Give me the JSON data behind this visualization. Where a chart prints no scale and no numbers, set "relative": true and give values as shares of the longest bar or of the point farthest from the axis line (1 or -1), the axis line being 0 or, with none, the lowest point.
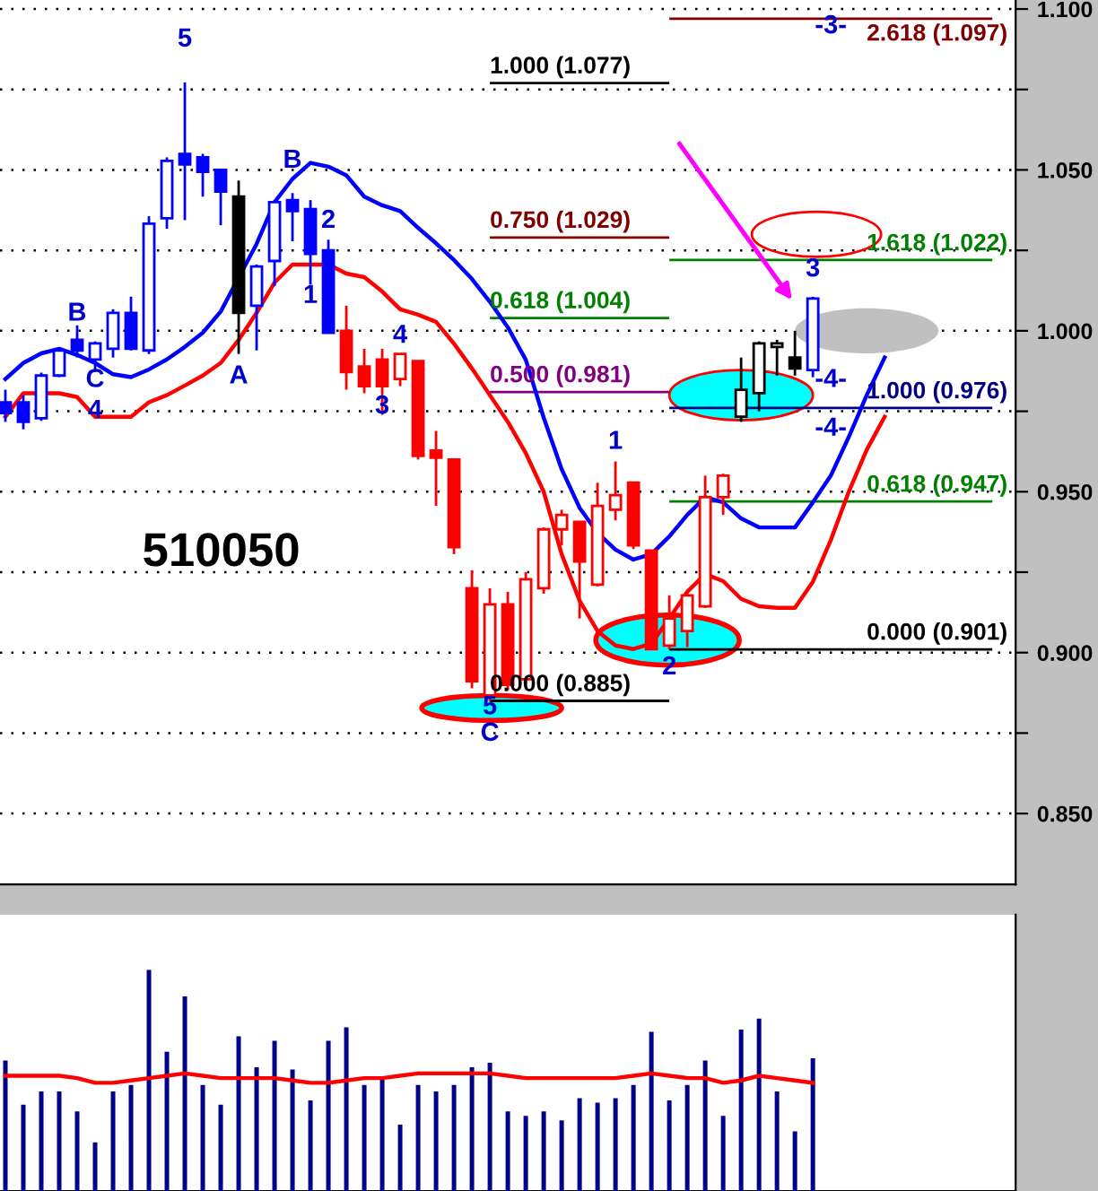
{
  "chart_data": [
    {
      "type": "candlestick",
      "title": "510050",
      "categories": [
        null,
        null,
        null,
        null,
        null,
        null,
        null,
        null,
        null,
        null,
        null,
        null,
        null,
        null,
        null,
        null,
        null,
        null,
        null,
        null,
        null,
        null,
        null,
        null,
        null,
        null,
        null,
        null,
        null,
        null,
        null,
        null,
        null,
        null,
        null,
        null,
        null,
        null,
        null,
        null,
        null,
        null,
        null,
        null,
        null,
        null,
        null,
        null,
        null,
        null
      ],
      "ohlc": [
        [
          0.9778,
          0.9817,
          0.9717,
          0.9744
        ],
        [
          0.9778,
          0.98,
          0.9694,
          0.9717
        ],
        [
          0.9728,
          0.987,
          0.972,
          0.9861
        ],
        [
          0.9861,
          0.9944,
          0.9856,
          0.9939
        ],
        [
          0.9972,
          1.0017,
          0.9917,
          0.9939
        ],
        [
          0.9911,
          0.9967,
          0.9872,
          0.9961
        ],
        [
          0.9944,
          1.0067,
          0.9917,
          1.0056
        ],
        [
          1.0056,
          1.0106,
          0.9939,
          0.9944
        ],
        [
          0.9939,
          1.0356,
          0.9928,
          1.0333
        ],
        [
          1.035,
          1.0539,
          1.0317,
          1.0528
        ],
        [
          1.055,
          1.0772,
          1.0344,
          1.0517
        ],
        [
          1.0539,
          1.055,
          1.0417,
          1.0494
        ],
        [
          1.05,
          1.05,
          1.0328,
          1.0433
        ],
        [
          1.0417,
          1.0467,
          0.9928,
          1.0056
        ],
        [
          1.0078,
          1.0206,
          0.9939,
          1.02
        ],
        [
          1.0217,
          1.0406,
          1.0139,
          1.04
        ],
        [
          1.0406,
          1.0428,
          1.0278,
          1.0372
        ],
        [
          1.0378,
          1.0406,
          1.0144,
          1.0239
        ],
        [
          1.025,
          1.0283,
          0.9994,
          0.9994
        ],
        [
          1.0,
          1.0078,
          0.9817,
          0.9872
        ],
        [
          0.9889,
          0.9944,
          0.9806,
          0.9828
        ],
        [
          0.9911,
          0.9944,
          0.9739,
          0.9828
        ],
        [
          0.985,
          0.9928,
          0.9828,
          0.9928
        ],
        [
          0.9906,
          0.9906,
          0.96,
          0.9611
        ],
        [
          0.9628,
          0.9689,
          0.9456,
          0.9606
        ],
        [
          0.96,
          0.96,
          0.9306,
          0.9328
        ],
        [
          0.92,
          0.9256,
          0.8889,
          0.8911
        ],
        [
          0.8867,
          0.92,
          0.885,
          0.915
        ],
        [
          0.915,
          0.9189,
          0.8883,
          0.89
        ],
        [
          0.8917,
          0.925,
          0.89,
          0.9228
        ],
        [
          0.92,
          0.9389,
          0.9183,
          0.9383
        ],
        [
          0.9383,
          0.9444,
          0.9333,
          0.9428
        ],
        [
          0.9406,
          0.9406,
          0.9106,
          0.9283
        ],
        [
          0.9211,
          0.9528,
          0.9206,
          0.9456
        ],
        [
          0.9444,
          0.9594,
          0.9411,
          0.9489
        ],
        [
          0.9528,
          0.9528,
          0.9322,
          0.9333
        ],
        [
          0.9317,
          0.9317,
          0.9011,
          0.9011
        ],
        [
          0.9022,
          0.9178,
          0.9011,
          0.9106
        ],
        [
          0.9067,
          0.9189,
          0.9017,
          0.9178
        ],
        [
          0.9144,
          0.955,
          0.9139,
          0.9483
        ],
        [
          0.9483,
          0.9556,
          0.9428,
          0.955
        ],
        [
          0.9733,
          0.9917,
          0.9717,
          0.9817
        ],
        [
          0.9806,
          0.9967,
          0.975,
          0.9961
        ],
        [
          0.995,
          0.9972,
          0.9861,
          0.9961
        ],
        [
          0.9917,
          1.0,
          0.9861,
          0.9883
        ],
        [
          0.9878,
          1.0106,
          0.9856,
          1.01
        ],
        null,
        null,
        null,
        null
      ],
      "colors": [
        "#0000ff",
        "#0000ff",
        "#0000ff",
        "#0000ff",
        "#0000ff",
        "#0000ff",
        "#0000ff",
        "#0000ff",
        "#0000ff",
        "#0000ff",
        "#0000ff",
        "#0000ff",
        "#0000ff",
        "#000000",
        "#0000ff",
        "#0000ff",
        "#0000ff",
        "#0000ff",
        "#0000ff",
        "#ff0000",
        "#ff0000",
        "#ff0000",
        "#ff0000",
        "#ff0000",
        "#ff0000",
        "#ff0000",
        "#ff0000",
        "#ff0000",
        "#ff0000",
        "#ff0000",
        "#ff0000",
        "#ff0000",
        "#ff0000",
        "#ff0000",
        "#ff0000",
        "#ff0000",
        "#ff0000",
        "#ff0000",
        "#ff0000",
        "#ff0000",
        "#ff0000",
        "#000000",
        "#000000",
        "#000000",
        "#000000",
        "#0000ff",
        null,
        null,
        null,
        null
      ],
      "series": [
        {
          "type": "line",
          "color": "#0000ff",
          "values": [
            0.985,
            0.99,
            0.993,
            0.9944,
            0.9925,
            0.99,
            0.9865,
            0.9856,
            0.988,
            0.9911,
            0.995,
            0.9994,
            1.006,
            null,
            1.027,
            1.04,
            1.0472,
            1.0522,
            1.051,
            1.0483,
            1.0417,
            1.039,
            1.0372,
            1.032,
            1.0272,
            1.022,
            1.0161,
            1.009,
            1.0011,
            0.991,
            0.973,
            0.957,
            0.945,
            0.9372,
            0.932,
            0.9289,
            0.9306,
            0.9361,
            0.9428,
            0.9483,
            0.9467,
            0.9417,
            0.9389,
            0.9389,
            0.9389,
            0.9467,
            0.955,
            0.967,
            0.98,
            0.9917
          ]
        },
        {
          "type": "line",
          "color": "#ff0000",
          "values": [
            0.9733,
            0.9806,
            0.9806,
            0.9806,
            0.9794,
            0.9733,
            0.9733,
            0.9733,
            0.9778,
            0.98,
            0.983,
            0.9861,
            0.99,
            0.9972,
            1.0056,
            1.015,
            1.0206,
            1.0206,
            1.0206,
            1.0178,
            1.0167,
            1.0122,
            1.0067,
            1.005,
            1.0028,
            0.996,
            0.9883,
            0.98,
            0.9717,
            0.962,
            0.95,
            0.9306,
            0.9161,
            0.9067,
            0.9022,
            0.9011,
            0.9028,
            0.9106,
            0.9189,
            0.9244,
            0.9222,
            0.9167,
            0.9144,
            0.9139,
            0.9139,
            0.922,
            0.935,
            0.95,
            0.963,
            0.9733
          ]
        }
      ],
      "ylim": [
        0.828,
        1.1028
      ],
      "yticks": [
        {
          "value": 0.85,
          "label": "0.850"
        },
        {
          "value": 0.875,
          "label": null
        },
        {
          "value": 0.9,
          "label": "0.900"
        },
        {
          "value": 0.925,
          "label": null
        },
        {
          "value": 0.95,
          "label": "0.950"
        },
        {
          "value": 0.975,
          "label": null
        },
        {
          "value": 1.0,
          "label": "1.000"
        },
        {
          "value": 1.025,
          "label": null
        },
        {
          "value": 1.05,
          "label": "1.050"
        },
        {
          "value": 1.075,
          "label": null
        },
        {
          "value": 1.1,
          "label": "1.100"
        }
      ],
      "grid": "y",
      "tick_labels": "y",
      "ref_lines": [
        {
          "axis": "y",
          "value": 1.077,
          "label": "1.000 (1.077)",
          "color": "#000000"
        },
        {
          "axis": "y",
          "value": 1.029,
          "label": "0.750 (1.029)",
          "color": "#800000"
        },
        {
          "axis": "y",
          "value": 1.004,
          "label": "0.618 (1.004)",
          "color": "#008000"
        },
        {
          "axis": "y",
          "value": 0.981,
          "label": "0.500 (0.981)",
          "color": "#800080"
        },
        {
          "axis": "y",
          "value": 0.885,
          "label": "0.000 (0.885)",
          "color": "#000000"
        },
        {
          "axis": "y",
          "value": 1.097,
          "label": "2.618 (1.097)",
          "color": "#800000"
        },
        {
          "axis": "y",
          "value": 1.022,
          "label": "1.618 (1.022)",
          "color": "#008000"
        },
        {
          "axis": "y",
          "value": 0.976,
          "label": "1.000 (0.976)",
          "color": "#000080"
        },
        {
          "axis": "y",
          "value": 0.947,
          "label": "0.618 (0.947)",
          "color": "#008000"
        },
        {
          "axis": "y",
          "value": 0.901,
          "label": "0.000 (0.901)",
          "color": "#000000"
        }
      ],
      "annotations": [
        "5",
        "B",
        "A",
        "B",
        "C",
        "4",
        "2",
        "1",
        "4",
        "3",
        "5",
        "C",
        "1",
        "2",
        "3",
        "-3-",
        "-4-",
        "-4-"
      ]
    },
    {
      "type": "bar",
      "relative": true,
      "categories": [
        null,
        null,
        null,
        null,
        null,
        null,
        null,
        null,
        null,
        null,
        null,
        null,
        null,
        null,
        null,
        null,
        null,
        null,
        null,
        null,
        null,
        null,
        null,
        null,
        null,
        null,
        null,
        null,
        null,
        null,
        null,
        null,
        null,
        null,
        null,
        null,
        null,
        null,
        null,
        null,
        null,
        null,
        null,
        null,
        null,
        null
      ],
      "series": [
        {
          "type": "bar",
          "color": "#00008b",
          "values": [
            0.59,
            0.39,
            0.45,
            0.45,
            0.36,
            0.22,
            0.45,
            0.48,
            1,
            0.63,
            0.88,
            0.48,
            0.39,
            0.7,
            0.56,
            0.68,
            0.55,
            0.41,
            0.68,
            0.74,
            0.48,
            0.51,
            0.3,
            0.48,
            0.45,
            0.48,
            0.56,
            0.58,
            0.36,
            0.34,
            0.36,
            0.32,
            0.42,
            0.4,
            0.42,
            0.48,
            0.72,
            0.41,
            0.48,
            0.59,
            0.34,
            0.73,
            0.78,
            0.45,
            0.27,
            0.6
          ]
        }
      ],
      "tick_labels": false
    },
    {
      "type": "line",
      "relative": true,
      "categories": [
        null,
        null,
        null,
        null,
        null,
        null,
        null,
        null,
        null,
        null,
        null,
        null,
        null,
        null,
        null,
        null,
        null,
        null,
        null,
        null,
        null,
        null,
        null,
        null,
        null,
        null,
        null,
        null,
        null,
        null,
        null,
        null,
        null,
        null,
        null,
        null,
        null,
        null,
        null,
        null,
        null,
        null,
        null,
        null,
        null,
        null
      ],
      "series": [
        {
          "type": "line",
          "color": "#ff0000",
          "values": [
            0.98,
            0.98,
            0.98,
            0.98,
            0.96,
            0.92,
            0.92,
            0.94,
            0.96,
            0.98,
            1,
            0.98,
            0.96,
            0.96,
            0.96,
            0.96,
            0.94,
            0.92,
            0.92,
            0.94,
            0.96,
            0.96,
            0.98,
            1,
            1,
            1,
            1,
            1,
            0.98,
            0.96,
            0.96,
            0.96,
            0.96,
            0.96,
            0.96,
            0.98,
            1,
            0.98,
            0.96,
            0.96,
            0.92,
            0.94,
            0.98,
            0.96,
            0.94,
            0.92
          ]
        }
      ],
      "tick_labels": false
    }
  ]
}
